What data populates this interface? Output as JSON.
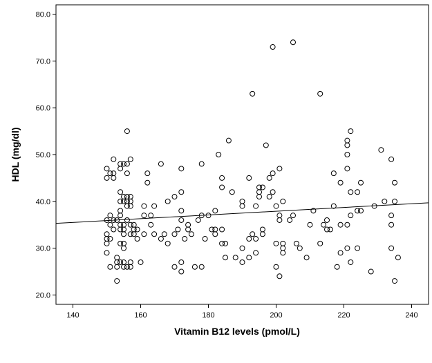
{
  "chart_data": {
    "type": "scatter",
    "title": "",
    "xlabel": "Vitamin B12 levels (pmol/L)",
    "ylabel": "HDL (mg/dl)",
    "xlim": [
      135,
      245
    ],
    "ylim": [
      18,
      82
    ],
    "x_ticks": [
      140,
      160,
      180,
      200,
      220,
      240
    ],
    "y_ticks": [
      20.0,
      30.0,
      40.0,
      50.0,
      60.0,
      70.0,
      80.0
    ],
    "x_tick_labels": [
      "140",
      "160",
      "180",
      "200",
      "220",
      "240"
    ],
    "y_tick_labels": [
      "20.0",
      "30.0",
      "40.0",
      "50.0",
      "60.0",
      "70.0",
      "80.0"
    ],
    "grid": false,
    "legend": "none",
    "marker": "open-circle",
    "colors": {
      "frame": "#000000",
      "marker": "#000000",
      "fit_line": "#000000",
      "background": "#ffffff"
    },
    "fit_line": {
      "x": [
        135,
        245
      ],
      "y": [
        35.3,
        39.7
      ]
    },
    "points": [
      [
        150,
        47
      ],
      [
        150,
        45
      ],
      [
        150,
        36
      ],
      [
        150,
        33
      ],
      [
        150,
        32
      ],
      [
        150,
        31
      ],
      [
        150,
        29
      ],
      [
        151,
        46
      ],
      [
        151,
        37
      ],
      [
        151,
        35
      ],
      [
        151,
        32
      ],
      [
        151,
        26
      ],
      [
        152,
        49
      ],
      [
        152,
        46
      ],
      [
        152,
        45
      ],
      [
        152,
        36
      ],
      [
        152,
        34
      ],
      [
        153,
        36
      ],
      [
        153,
        28
      ],
      [
        153,
        27
      ],
      [
        153,
        26
      ],
      [
        153,
        23
      ],
      [
        154,
        48
      ],
      [
        154,
        47
      ],
      [
        154,
        42
      ],
      [
        154,
        40
      ],
      [
        154,
        38
      ],
      [
        154,
        37
      ],
      [
        154,
        35
      ],
      [
        154,
        34
      ],
      [
        154,
        31
      ],
      [
        154,
        27
      ],
      [
        155,
        48
      ],
      [
        155,
        41
      ],
      [
        155,
        40
      ],
      [
        155,
        35
      ],
      [
        155,
        34
      ],
      [
        155,
        33
      ],
      [
        155,
        31
      ],
      [
        155,
        30
      ],
      [
        155,
        27
      ],
      [
        155,
        26
      ],
      [
        156,
        55
      ],
      [
        156,
        48
      ],
      [
        156,
        46
      ],
      [
        156,
        41
      ],
      [
        156,
        40
      ],
      [
        156,
        39
      ],
      [
        156,
        36
      ],
      [
        156,
        26
      ],
      [
        157,
        49
      ],
      [
        157,
        41
      ],
      [
        157,
        40
      ],
      [
        157,
        39
      ],
      [
        157,
        35
      ],
      [
        157,
        33
      ],
      [
        157,
        27
      ],
      [
        157,
        26
      ],
      [
        158,
        35
      ],
      [
        158,
        34
      ],
      [
        158,
        33
      ],
      [
        159,
        34
      ],
      [
        159,
        32
      ],
      [
        160,
        27
      ],
      [
        161,
        39
      ],
      [
        161,
        37
      ],
      [
        161,
        33
      ],
      [
        162,
        46
      ],
      [
        162,
        44
      ],
      [
        163,
        37
      ],
      [
        163,
        35
      ],
      [
        164,
        39
      ],
      [
        164,
        33
      ],
      [
        166,
        48
      ],
      [
        166,
        32
      ],
      [
        167,
        33
      ],
      [
        168,
        40
      ],
      [
        168,
        31
      ],
      [
        170,
        41
      ],
      [
        170,
        33
      ],
      [
        170,
        26
      ],
      [
        171,
        34
      ],
      [
        172,
        47
      ],
      [
        172,
        42
      ],
      [
        172,
        38
      ],
      [
        172,
        36
      ],
      [
        172,
        27
      ],
      [
        172,
        25
      ],
      [
        173,
        32
      ],
      [
        174,
        35
      ],
      [
        174,
        34
      ],
      [
        175,
        33
      ],
      [
        176,
        26
      ],
      [
        177,
        36
      ],
      [
        178,
        48
      ],
      [
        178,
        37
      ],
      [
        178,
        26
      ],
      [
        179,
        32
      ],
      [
        180,
        37
      ],
      [
        181,
        34
      ],
      [
        182,
        38
      ],
      [
        182,
        34
      ],
      [
        182,
        33
      ],
      [
        183,
        50
      ],
      [
        184,
        43
      ],
      [
        184,
        45
      ],
      [
        184,
        34
      ],
      [
        184,
        31
      ],
      [
        185,
        31
      ],
      [
        185,
        28
      ],
      [
        186,
        53
      ],
      [
        187,
        42
      ],
      [
        188,
        28
      ],
      [
        190,
        40
      ],
      [
        190,
        39
      ],
      [
        190,
        30
      ],
      [
        190,
        27
      ],
      [
        192,
        45
      ],
      [
        192,
        32
      ],
      [
        192,
        28
      ],
      [
        193,
        63
      ],
      [
        193,
        33
      ],
      [
        194,
        39
      ],
      [
        194,
        32
      ],
      [
        194,
        29
      ],
      [
        195,
        43
      ],
      [
        195,
        42
      ],
      [
        195,
        41
      ],
      [
        196,
        43
      ],
      [
        196,
        34
      ],
      [
        196,
        33
      ],
      [
        197,
        52
      ],
      [
        198,
        45
      ],
      [
        198,
        41
      ],
      [
        199,
        73
      ],
      [
        199,
        46
      ],
      [
        199,
        42
      ],
      [
        200,
        39
      ],
      [
        200,
        31
      ],
      [
        200,
        26
      ],
      [
        201,
        47
      ],
      [
        201,
        37
      ],
      [
        201,
        36
      ],
      [
        201,
        24
      ],
      [
        202,
        40
      ],
      [
        202,
        31
      ],
      [
        202,
        30
      ],
      [
        202,
        29
      ],
      [
        204,
        36
      ],
      [
        205,
        74
      ],
      [
        205,
        37
      ],
      [
        206,
        31
      ],
      [
        207,
        30
      ],
      [
        209,
        28
      ],
      [
        210,
        35
      ],
      [
        211,
        38
      ],
      [
        213,
        63
      ],
      [
        213,
        31
      ],
      [
        214,
        35
      ],
      [
        215,
        36
      ],
      [
        215,
        34
      ],
      [
        216,
        34
      ],
      [
        217,
        46
      ],
      [
        217,
        39
      ],
      [
        218,
        26
      ],
      [
        219,
        44
      ],
      [
        219,
        35
      ],
      [
        219,
        29
      ],
      [
        221,
        53
      ],
      [
        221,
        52
      ],
      [
        221,
        50
      ],
      [
        221,
        47
      ],
      [
        221,
        35
      ],
      [
        221,
        30
      ],
      [
        222,
        55
      ],
      [
        222,
        42
      ],
      [
        222,
        37
      ],
      [
        222,
        27
      ],
      [
        224,
        42
      ],
      [
        224,
        38
      ],
      [
        224,
        30
      ],
      [
        225,
        44
      ],
      [
        225,
        38
      ],
      [
        228,
        25
      ],
      [
        229,
        39
      ],
      [
        231,
        51
      ],
      [
        232,
        40
      ],
      [
        234,
        49
      ],
      [
        234,
        37
      ],
      [
        234,
        35
      ],
      [
        234,
        30
      ],
      [
        235,
        44
      ],
      [
        235,
        40
      ],
      [
        235,
        23
      ],
      [
        236,
        28
      ]
    ]
  }
}
